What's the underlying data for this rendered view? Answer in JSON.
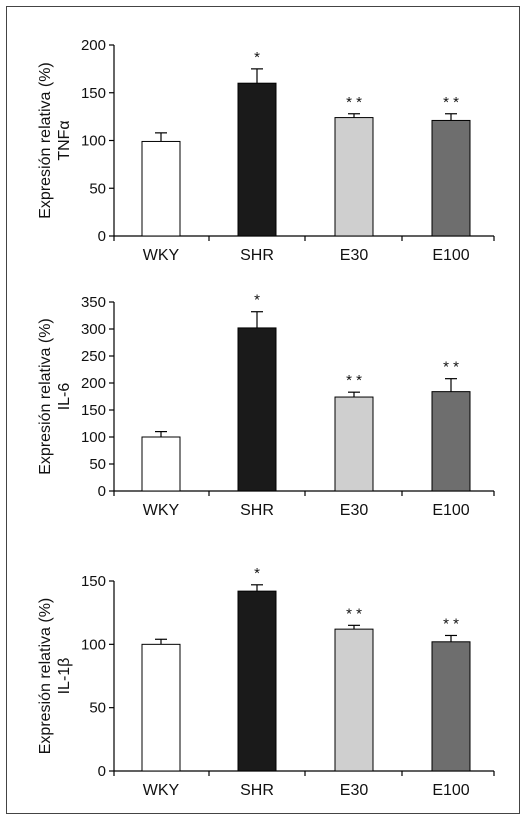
{
  "chart_data": [
    {
      "type": "bar",
      "categories": [
        "WKY",
        "SHR",
        "E30",
        "E100"
      ],
      "values": [
        99,
        160,
        124,
        121
      ],
      "errors": [
        9,
        15,
        4,
        7
      ],
      "significance": [
        "",
        "*",
        "* *",
        "* *"
      ],
      "ylabel_line1": "Expresión relativa (%)",
      "ylabel_line2": "TNFα",
      "ylim": [
        0,
        200
      ],
      "yticks": [
        0,
        50,
        100,
        150,
        200
      ],
      "colors": [
        "#ffffff",
        "#1a1a1a",
        "#cfcfcf",
        "#6e6e6e"
      ]
    },
    {
      "type": "bar",
      "categories": [
        "WKY",
        "SHR",
        "E30",
        "E100"
      ],
      "values": [
        100,
        302,
        174,
        184
      ],
      "errors": [
        10,
        30,
        9,
        24
      ],
      "significance": [
        "",
        "*",
        "* *",
        "* *"
      ],
      "ylabel_line1": "Expresión relativa (%)",
      "ylabel_line2": "IL-6",
      "ylim": [
        0,
        350
      ],
      "yticks": [
        0,
        50,
        100,
        150,
        200,
        250,
        300,
        350
      ],
      "colors": [
        "#ffffff",
        "#1a1a1a",
        "#cfcfcf",
        "#6e6e6e"
      ]
    },
    {
      "type": "bar",
      "categories": [
        "WKY",
        "SHR",
        "E30",
        "E100"
      ],
      "values": [
        100,
        142,
        112,
        102
      ],
      "errors": [
        4,
        5,
        3,
        5
      ],
      "significance": [
        "",
        "*",
        "* *",
        "* *"
      ],
      "ylabel_line1": "Expresión relativa (%)",
      "ylabel_line2": "IL-1β",
      "ylim": [
        0,
        150
      ],
      "yticks": [
        0,
        50,
        100,
        150
      ],
      "colors": [
        "#ffffff",
        "#1a1a1a",
        "#cfcfcf",
        "#6e6e6e"
      ]
    }
  ]
}
